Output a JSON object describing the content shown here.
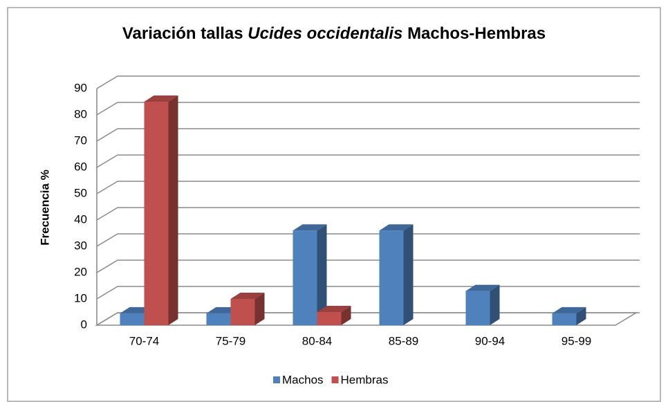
{
  "chart_data": {
    "type": "bar3d",
    "title": [
      "Variación tallas",
      "Ucides occidentalis",
      "Machos-Hembras"
    ],
    "y_label": "Frecuencia %",
    "categories": [
      "70-74",
      "75-79",
      "80-84",
      "85-89",
      "90-94",
      "95-99"
    ],
    "series": [
      {
        "name": "Machos",
        "color": "#4f81bd",
        "values": [
          4.5,
          4.5,
          36,
          36,
          13,
          4.5
        ]
      },
      {
        "name": "Hembras",
        "color": "#c0504d",
        "values": [
          85,
          10,
          5,
          null,
          null,
          null
        ]
      }
    ],
    "ylim": [
      0,
      90
    ],
    "yticks": [
      0,
      10,
      20,
      30,
      40,
      50,
      60,
      70,
      80,
      90
    ],
    "grid": true,
    "legend": "bottom"
  }
}
